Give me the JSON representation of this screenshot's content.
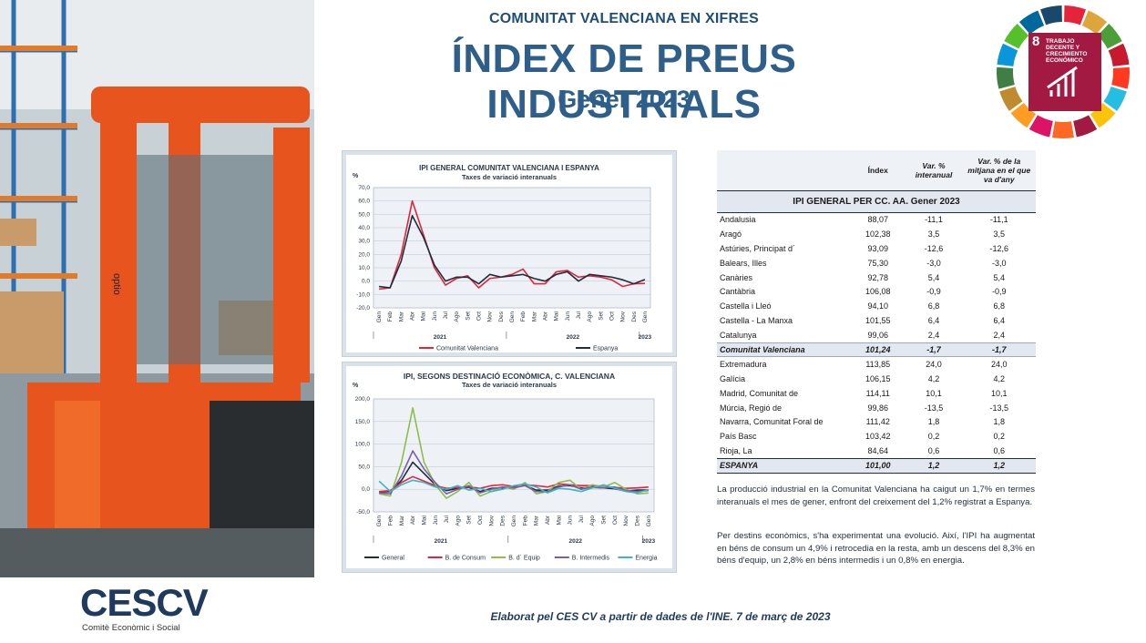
{
  "header": {
    "kicker": "COMUNITAT VALENCIANA EN XIFRES",
    "title": "ÍNDEX DE PREUS INDUSTRIALS",
    "subtitle": "Gener 2023"
  },
  "sdg_badge": {
    "number": "8",
    "text": "TRABAJO DECENTE Y CRECIMIENTO ECONÓMICO",
    "color": "#a21942"
  },
  "chart_data": [
    {
      "type": "line",
      "title": "IPI GENERAL COMUNITAT VALENCIANA I ESPANYA",
      "subtitle": "Taxes de variació interanuals",
      "ylabel": "%",
      "ylim": [
        -20,
        70
      ],
      "yticks": [
        "-20,0",
        "-10,0",
        "0,0",
        "10,0",
        "20,0",
        "30,0",
        "40,0",
        "50,0",
        "60,0",
        "70,0"
      ],
      "categories": [
        "Gen",
        "Feb",
        "Mar",
        "Abr",
        "Mai",
        "Jun",
        "Jul",
        "Ago",
        "Set",
        "Oct",
        "Nov",
        "Des",
        "Gen",
        "Feb",
        "Mar",
        "Abr",
        "Mai",
        "Jun",
        "Jul",
        "Ago",
        "Set",
        "Oct",
        "Nov",
        "Des",
        "Gen"
      ],
      "year_labels": [
        "2021",
        "2022",
        "2023"
      ],
      "series": [
        {
          "name": "Comunitat Valenciana",
          "color": "#e0263a",
          "values": [
            -6,
            -5,
            20,
            60,
            35,
            10,
            -3,
            2,
            4,
            -5,
            2,
            3,
            5,
            9,
            -2,
            -2,
            7,
            8,
            3,
            4,
            3,
            1,
            -4,
            -2,
            -1.7
          ]
        },
        {
          "name": "Espanya",
          "color": "#1f2d3d",
          "values": [
            -4,
            -5,
            15,
            49,
            33,
            12,
            0,
            3,
            3,
            -2,
            5,
            3,
            4,
            5,
            2,
            0,
            5,
            7,
            0,
            5,
            4,
            3,
            1,
            -2,
            1.2
          ]
        }
      ]
    },
    {
      "type": "line",
      "title": "IPI, SEGONS DESTINACIÓ ECONÒMICA,  C. VALENCIANA",
      "subtitle": "Taxes de variació interanuals",
      "ylabel": "%",
      "ylim": [
        -50,
        200
      ],
      "yticks": [
        "-50,0",
        "0,0",
        "50,0",
        "100,0",
        "150,0",
        "200,0"
      ],
      "categories": [
        "Gen",
        "Feb",
        "Mar",
        "Abr",
        "Mai",
        "Jun",
        "Jul",
        "Ago",
        "Set",
        "Oct",
        "Nov",
        "Des",
        "Gen",
        "Feb",
        "Mar",
        "Abr",
        "Mai",
        "Jun",
        "Jul",
        "Ago",
        "Set",
        "Oct",
        "Nov",
        "Des",
        "Gen"
      ],
      "year_labels": [
        "2021",
        "2022",
        "2023"
      ],
      "series": [
        {
          "name": "General",
          "color": "#1f2d3d",
          "values": [
            -6,
            -5,
            20,
            60,
            35,
            10,
            -3,
            2,
            4,
            -5,
            2,
            3,
            5,
            9,
            -2,
            -2,
            7,
            8,
            3,
            4,
            3,
            1,
            -4,
            -2,
            -1.7
          ]
        },
        {
          "name": "B. de Consum",
          "color": "#e0263a",
          "values": [
            -5,
            -3,
            15,
            28,
            18,
            8,
            2,
            4,
            5,
            2,
            8,
            10,
            6,
            10,
            8,
            5,
            12,
            10,
            8,
            8,
            6,
            4,
            2,
            3,
            4.9
          ]
        },
        {
          "name": "B. d´ Equip",
          "color": "#8cbf4a",
          "values": [
            -10,
            -15,
            60,
            180,
            60,
            10,
            -20,
            -5,
            15,
            -15,
            -5,
            5,
            0,
            15,
            -10,
            -5,
            15,
            20,
            0,
            10,
            5,
            15,
            0,
            -10,
            -8.3
          ]
        },
        {
          "name": "B. Intermedis",
          "color": "#7b5ea7",
          "values": [
            -8,
            -10,
            30,
            85,
            45,
            15,
            -10,
            0,
            8,
            -8,
            0,
            5,
            3,
            8,
            -5,
            -5,
            5,
            10,
            0,
            5,
            3,
            5,
            -3,
            -5,
            -2.8
          ]
        },
        {
          "name": "Energia",
          "color": "#3fb5c5",
          "values": [
            18,
            -5,
            10,
            20,
            15,
            5,
            0,
            8,
            -2,
            2,
            -5,
            0,
            8,
            12,
            5,
            -8,
            2,
            0,
            -5,
            3,
            10,
            2,
            -5,
            -8,
            -0.8
          ]
        }
      ]
    }
  ],
  "table": {
    "title": "IPI GENERAL PER CC. AA. Gener 2023",
    "columns": [
      "",
      "Índex",
      "Var. %\ninteranual",
      "Var. %  de la\nmitjana en el que\nva d'any"
    ],
    "rows": [
      [
        "Andalusia",
        "88,07",
        "-11,1",
        "-11,1"
      ],
      [
        "Aragó",
        "102,38",
        "3,5",
        "3,5"
      ],
      [
        "Astúries, Principat d´",
        "93,09",
        "-12,6",
        "-12,6"
      ],
      [
        "Balears, Illes",
        "75,30",
        "-3,0",
        "-3,0"
      ],
      [
        "Canàries",
        "92,78",
        "5,4",
        "5,4"
      ],
      [
        "Cantàbria",
        "106,08",
        "-0,9",
        "-0,9"
      ],
      [
        "Castella i Lleó",
        "94,10",
        "6,8",
        "6,8"
      ],
      [
        "Castella - La Manxa",
        "101,55",
        "6,4",
        "6,4"
      ],
      [
        "Catalunya",
        "99,06",
        "2,4",
        "2,4"
      ],
      [
        "Comunitat Valenciana",
        "101,24",
        "-1,7",
        "-1,7"
      ],
      [
        "Extremadura",
        "113,85",
        "24,0",
        "24,0"
      ],
      [
        "Galícia",
        "106,15",
        "4,2",
        "4,2"
      ],
      [
        "Madrid, Comunitat de",
        "114,11",
        "10,1",
        "10,1"
      ],
      [
        "Múrcia, Regió de",
        "99,86",
        "-13,5",
        "-13,5"
      ],
      [
        "Navarra, Comunitat Foral de",
        "111,42",
        "1,8",
        "1,8"
      ],
      [
        "País Basc",
        "103,42",
        "0,2",
        "0,2"
      ],
      [
        "Rioja, La",
        "84,64",
        "0,6",
        "0,6"
      ],
      [
        "ESPANYA",
        "101,00",
        "1,2",
        "1,2"
      ]
    ]
  },
  "paragraphs": [
    "La producció industrial en la Comunitat Valenciana ha caigut un 1,7% en termes interanuals el mes de gener, enfront del creixement del 1,2% registrat a Espanya.",
    "Per destins econòmics, s'ha experimentat una evolució. Així, l'IPI ha augmentat en béns de consum un 4,9% i retrocedia en la resta, amb un descens del 8,3% en béns d'equip, un 2,8% en béns intermedis i un 0,8% en energia."
  ],
  "footer": {
    "logo": "CESCV",
    "logo_sub": "Comitè Econòmic i Social",
    "note": "Elaborat pel CES CV a partir de dades de l'INE. 7 de març de 2023"
  }
}
